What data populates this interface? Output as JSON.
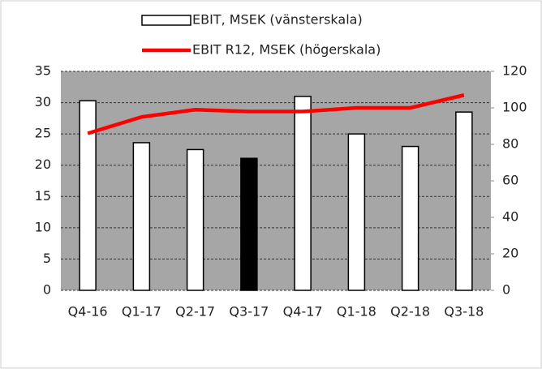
{
  "chart_data": {
    "type": "bar",
    "categories": [
      "Q4-16",
      "Q1-17",
      "Q2-17",
      "Q3-17",
      "Q4-17",
      "Q1-18",
      "Q2-18",
      "Q3-18"
    ],
    "series": [
      {
        "name": "EBIT, MSEK (vänsterskala)",
        "type": "bar",
        "colors": [
          "#ffffff",
          "#ffffff",
          "#ffffff",
          "#000000",
          "#ffffff",
          "#ffffff",
          "#ffffff",
          "#ffffff"
        ],
        "values": [
          30.3,
          23.6,
          22.5,
          21.1,
          31.0,
          25.0,
          23.0,
          28.5
        ]
      },
      {
        "name": "EBIT R12, MSEK (högerskala)",
        "type": "line",
        "color": "#ff0000",
        "axis": "y2",
        "values": [
          86,
          95,
          99,
          98,
          98,
          100,
          100,
          107
        ]
      }
    ],
    "ylim": [
      0,
      35
    ],
    "yticks": [
      0,
      5,
      10,
      15,
      20,
      25,
      30,
      35
    ],
    "y2lim": [
      0,
      120
    ],
    "y2ticks": [
      0,
      20,
      40,
      60,
      80,
      100,
      120
    ],
    "grid": true,
    "legend": "top"
  }
}
